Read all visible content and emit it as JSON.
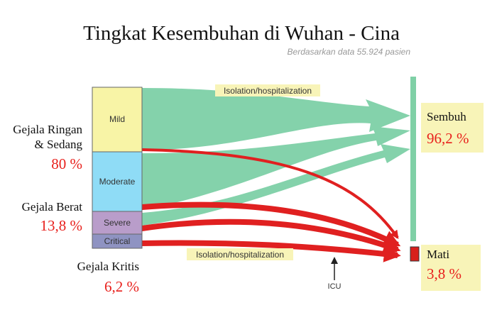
{
  "header": {
    "title": "Tingkat Kesembuhan di Wuhan - Cina",
    "subtitle": "Berdasarkan data 55.924 pasien"
  },
  "stack": {
    "labels": [
      "Mild",
      "Moderate",
      "Severe",
      "Critical"
    ]
  },
  "groups": [
    {
      "lines": [
        "Gejala Ringan",
        "& Sedang"
      ],
      "percent": "80 %"
    },
    {
      "lines": [
        "Gejala Berat"
      ],
      "percent": "13,8 %"
    },
    {
      "lines": [
        "Gejala Kritis"
      ],
      "percent": "6,2 %"
    }
  ],
  "outcomes": [
    {
      "label": "Sembuh",
      "percent": "96,2 %"
    },
    {
      "label": "Mati",
      "percent": "3,8 %"
    }
  ],
  "flows": {
    "top_label": "Isolation/hospitalization",
    "bottom_label": "Isolation/hospitalization",
    "icu": "ICU"
  }
}
